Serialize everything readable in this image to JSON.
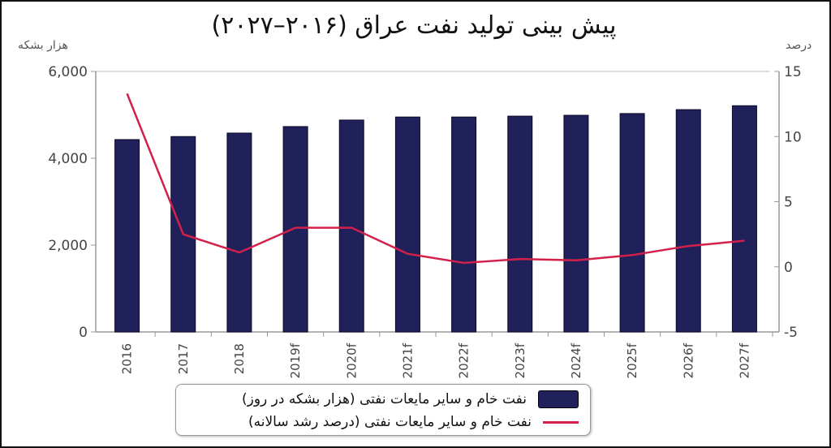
{
  "title": "پیش بینی تولید نفت عراق (۲۰۱۶–۲۰۲۷)",
  "left_axis_unit": "هزار بشکه",
  "right_axis_unit": "درصد",
  "legend": {
    "bars_label": "نفت خام و سایر مایعات نفتی (هزار بشکه در روز)",
    "line_label": "نفت خام و سایر مایعات نفتی (درصد رشد سالانه)"
  },
  "colors": {
    "bar": "#20205a",
    "line": "#d3204a",
    "axis": "#999999",
    "tick_text": "#444444"
  },
  "chart_data": {
    "type": "bar",
    "combo": "bar+line (dual axis)",
    "title": "پیش بینی تولید نفت عراق (۲۰۱۶–۲۰۲۷)",
    "xlabel": "",
    "ylabel_left": "هزار بشکه",
    "ylabel_right": "درصد",
    "categories": [
      "2016",
      "2017",
      "2018",
      "2019f",
      "2020f",
      "2021f",
      "2022f",
      "2023f",
      "2024f",
      "2025f",
      "2026f",
      "2027f"
    ],
    "y_left": {
      "range": [
        0,
        6000
      ],
      "ticks": [
        "0",
        "2,000",
        "4,000",
        "6,000"
      ]
    },
    "y_right": {
      "range": [
        -5,
        15
      ],
      "ticks": [
        "-5",
        "0",
        "5",
        "10",
        "15"
      ]
    },
    "series": [
      {
        "name": "نفت خام و سایر مایعات نفتی (هزار بشکه در روز)",
        "type": "bar",
        "axis": "left",
        "values": [
          4430,
          4500,
          4580,
          4730,
          4880,
          4950,
          4950,
          4970,
          4990,
          5030,
          5120,
          5210
        ]
      },
      {
        "name": "نفت خام و سایر مایعات نفتی (درصد رشد سالانه)",
        "type": "line",
        "axis": "right",
        "values": [
          13.3,
          2.5,
          1.1,
          3.0,
          3.0,
          1.0,
          0.3,
          0.6,
          0.5,
          0.9,
          1.6,
          2.0
        ]
      }
    ],
    "grid": false,
    "legend_position": "bottom"
  }
}
